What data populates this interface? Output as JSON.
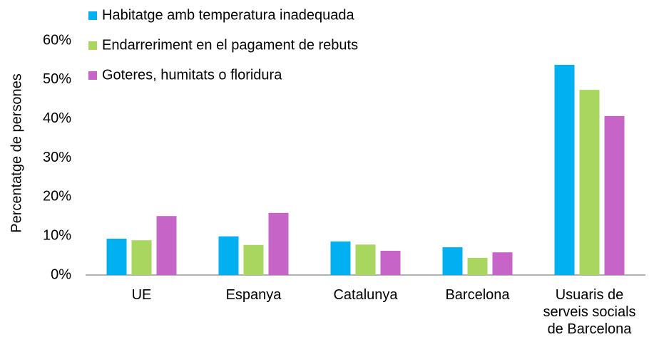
{
  "chart_data": {
    "type": "bar",
    "ylabel": "Percentatge de persones",
    "categories": [
      "UE",
      "Espanya",
      "Catalunya",
      "Barcelona",
      "Usuaris de serveis socials de Barcelona"
    ],
    "series": [
      {
        "name": "Habitatge amb temperatura inadequada",
        "color": "#00b0f0",
        "values": [
          9.3,
          9.9,
          8.6,
          7.1,
          53.8
        ]
      },
      {
        "name": "Endarreriment en el pagament de rebuts",
        "color": "#a9d65e",
        "values": [
          8.9,
          7.7,
          7.8,
          4.4,
          47.4
        ]
      },
      {
        "name": "Goteres, humitats o floridura",
        "color": "#c664c8",
        "values": [
          15.1,
          15.9,
          6.2,
          5.8,
          40.7
        ]
      }
    ],
    "ylim": [
      0,
      60
    ],
    "yticks": [
      {
        "value": 0,
        "label": "0%"
      },
      {
        "value": 10,
        "label": "10%"
      },
      {
        "value": 20,
        "label": "20%"
      },
      {
        "value": 30,
        "label": "30%"
      },
      {
        "value": 40,
        "label": "40%"
      },
      {
        "value": 50,
        "label": "50%"
      },
      {
        "value": 60,
        "label": "60%"
      }
    ],
    "grid": false,
    "legend": "top-left"
  }
}
